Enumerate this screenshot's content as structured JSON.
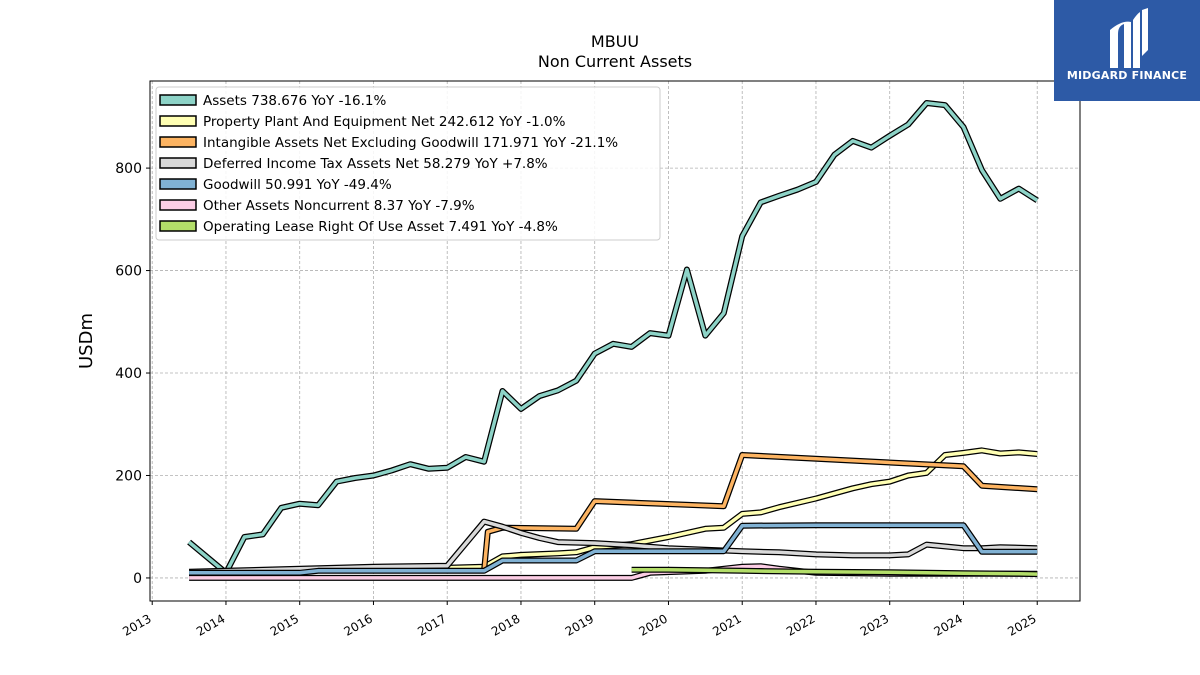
{
  "chart_data": {
    "type": "line",
    "title": "MBUU",
    "subtitle": "Non Current  Assets",
    "ylabel": "USDm",
    "xlabel": "",
    "xlim": [
      2012.97,
      2025.58
    ],
    "ylim": [
      -45,
      970
    ],
    "yticks": [
      0,
      200,
      400,
      600,
      800
    ],
    "xticks": [
      "2013",
      "2014",
      "2015",
      "2016",
      "2017",
      "2018",
      "2019",
      "2020",
      "2021",
      "2022",
      "2023",
      "2024",
      "2025"
    ],
    "grid": true,
    "legend_position": "upper-left",
    "series": [
      {
        "name": "Assets  738.676 YoY -16.1%",
        "color": "#8dd3c7",
        "points": [
          [
            2013.5,
            70
          ],
          [
            2014.0,
            10
          ],
          [
            2014.25,
            80
          ],
          [
            2014.5,
            85
          ],
          [
            2014.75,
            137
          ],
          [
            2015.0,
            145
          ],
          [
            2015.25,
            142
          ],
          [
            2015.5,
            188
          ],
          [
            2015.75,
            195
          ],
          [
            2016.0,
            200
          ],
          [
            2016.25,
            210
          ],
          [
            2016.5,
            222
          ],
          [
            2016.75,
            213
          ],
          [
            2017.0,
            215
          ],
          [
            2017.25,
            236
          ],
          [
            2017.5,
            227
          ],
          [
            2017.75,
            365
          ],
          [
            2018.0,
            330
          ],
          [
            2018.25,
            355
          ],
          [
            2018.5,
            366
          ],
          [
            2018.75,
            385
          ],
          [
            2019.0,
            438
          ],
          [
            2019.25,
            457
          ],
          [
            2019.5,
            451
          ],
          [
            2019.75,
            478
          ],
          [
            2020.0,
            473
          ],
          [
            2020.25,
            602
          ],
          [
            2020.5,
            473
          ],
          [
            2020.75,
            517
          ],
          [
            2021.0,
            667
          ],
          [
            2021.25,
            733
          ],
          [
            2021.5,
            746
          ],
          [
            2021.75,
            758
          ],
          [
            2022.0,
            773
          ],
          [
            2022.25,
            826
          ],
          [
            2022.5,
            853
          ],
          [
            2022.75,
            840
          ],
          [
            2023.0,
            863
          ],
          [
            2023.25,
            885
          ],
          [
            2023.5,
            927
          ],
          [
            2023.75,
            923
          ],
          [
            2024.0,
            880
          ],
          [
            2024.25,
            796
          ],
          [
            2024.5,
            740
          ],
          [
            2024.75,
            760
          ],
          [
            2025.0,
            737
          ]
        ]
      },
      {
        "name": "Property Plant And Equipment Net  242.612 YoY -1.0%",
        "color": "#ffffb3",
        "points": [
          [
            2013.5,
            10
          ],
          [
            2014.0,
            10
          ],
          [
            2014.5,
            12
          ],
          [
            2015.0,
            14
          ],
          [
            2016.0,
            16
          ],
          [
            2017.0,
            20
          ],
          [
            2017.5,
            22
          ],
          [
            2017.75,
            42
          ],
          [
            2018.0,
            45
          ],
          [
            2018.5,
            48
          ],
          [
            2018.75,
            50
          ],
          [
            2019.0,
            60
          ],
          [
            2019.5,
            66
          ],
          [
            2020.0,
            80
          ],
          [
            2020.5,
            96
          ],
          [
            2020.75,
            98
          ],
          [
            2021.0,
            125
          ],
          [
            2021.25,
            128
          ],
          [
            2021.5,
            138
          ],
          [
            2022.0,
            155
          ],
          [
            2022.5,
            175
          ],
          [
            2022.75,
            183
          ],
          [
            2023.0,
            188
          ],
          [
            2023.25,
            200
          ],
          [
            2023.5,
            205
          ],
          [
            2023.75,
            240
          ],
          [
            2024.0,
            244
          ],
          [
            2024.25,
            249
          ],
          [
            2024.5,
            243
          ],
          [
            2024.75,
            245
          ],
          [
            2025.0,
            242
          ]
        ]
      },
      {
        "name": "Intangible Assets Net Excluding Goodwill  171.971 YoY -21.1%",
        "color": "#fdb462",
        "points": [
          [
            2017.5,
            15
          ],
          [
            2017.55,
            90
          ],
          [
            2017.75,
            98
          ],
          [
            2018.75,
            96
          ],
          [
            2019.0,
            150
          ],
          [
            2020.75,
            140
          ],
          [
            2021.0,
            240
          ],
          [
            2024.0,
            218
          ],
          [
            2024.25,
            180
          ],
          [
            2025.0,
            173
          ]
        ]
      },
      {
        "name": "Deferred Income Tax Assets Net  58.279 YoY +7.8%",
        "color": "#d9d9d9",
        "points": [
          [
            2013.5,
            12
          ],
          [
            2014.0,
            14
          ],
          [
            2015.0,
            18
          ],
          [
            2016.0,
            22
          ],
          [
            2017.0,
            24
          ],
          [
            2017.5,
            110
          ],
          [
            2017.75,
            100
          ],
          [
            2018.0,
            88
          ],
          [
            2018.25,
            78
          ],
          [
            2018.5,
            70
          ],
          [
            2019.0,
            68
          ],
          [
            2019.5,
            64
          ],
          [
            2020.0,
            58
          ],
          [
            2020.5,
            55
          ],
          [
            2021.0,
            52
          ],
          [
            2021.5,
            50
          ],
          [
            2022.0,
            46
          ],
          [
            2022.5,
            44
          ],
          [
            2023.0,
            44
          ],
          [
            2023.25,
            46
          ],
          [
            2023.5,
            65
          ],
          [
            2024.0,
            58
          ],
          [
            2024.25,
            58
          ],
          [
            2024.5,
            60
          ],
          [
            2025.0,
            58
          ]
        ]
      },
      {
        "name": "Goodwill  50.991 YoY -49.4%",
        "color": "#80b1d3",
        "points": [
          [
            2013.5,
            10
          ],
          [
            2015.0,
            10
          ],
          [
            2015.25,
            14
          ],
          [
            2016.0,
            14
          ],
          [
            2017.5,
            14
          ],
          [
            2017.75,
            34
          ],
          [
            2018.75,
            34
          ],
          [
            2019.0,
            52
          ],
          [
            2020.75,
            52
          ],
          [
            2021.0,
            102
          ],
          [
            2022.0,
            103
          ],
          [
            2024.0,
            103
          ],
          [
            2024.25,
            51
          ],
          [
            2025.0,
            51
          ]
        ]
      },
      {
        "name": "Other Assets Noncurrent  8.37 YoY -7.9%",
        "color": "#fccde5",
        "points": [
          [
            2013.5,
            0
          ],
          [
            2019.5,
            0
          ],
          [
            2019.75,
            10
          ],
          [
            2020.5,
            14
          ],
          [
            2021.0,
            22
          ],
          [
            2021.25,
            23
          ],
          [
            2021.5,
            18
          ],
          [
            2022.0,
            10
          ],
          [
            2023.0,
            8
          ],
          [
            2024.0,
            8
          ],
          [
            2025.0,
            8
          ]
        ]
      },
      {
        "name": "Operating Lease Right Of Use Asset  7.491 YoY -4.8%",
        "color": "#b3de69",
        "points": [
          [
            2019.5,
            16
          ],
          [
            2020.0,
            16
          ],
          [
            2021.0,
            14
          ],
          [
            2022.0,
            12
          ],
          [
            2023.0,
            11
          ],
          [
            2024.0,
            9
          ],
          [
            2024.75,
            8
          ],
          [
            2025.0,
            7.5
          ]
        ]
      }
    ]
  },
  "logo": {
    "text": "MIDGARD FINANCE",
    "background": "#2d5aa6"
  }
}
